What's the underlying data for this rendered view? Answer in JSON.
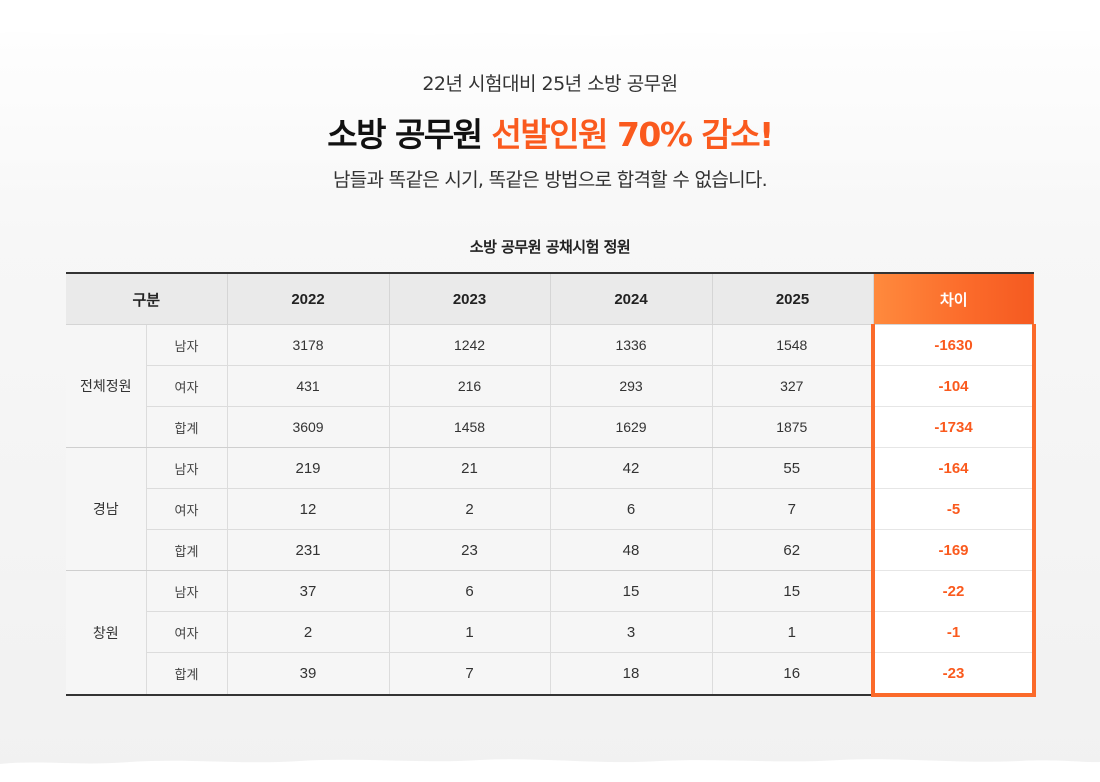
{
  "header": {
    "subtitle": "22년 시험대비 25년 소방 공무원",
    "headline_main": "소방 공무원 ",
    "headline_accent": "선발인원 70% 감소!",
    "tagline": "남들과 똑같은 시기, 똑같은 방법으로 합격할 수 없습니다."
  },
  "table": {
    "title": "소방 공무원 공채시험 정원",
    "headers": {
      "category": "구분",
      "years": [
        "2022",
        "2023",
        "2024",
        "2025"
      ],
      "diff": "차이"
    },
    "groups": [
      {
        "region": "전체정원",
        "rows": [
          {
            "label": "남자",
            "values": [
              "3178",
              "1242",
              "1336",
              "1548"
            ],
            "diff": "-1630"
          },
          {
            "label": "여자",
            "values": [
              "431",
              "216",
              "293",
              "327"
            ],
            "diff": "-104"
          },
          {
            "label": "합계",
            "values": [
              "3609",
              "1458",
              "1629",
              "1875"
            ],
            "diff": "-1734"
          }
        ]
      },
      {
        "region": "경남",
        "rows": [
          {
            "label": "남자",
            "values": [
              "219",
              "21",
              "42",
              "55"
            ],
            "diff": "-164"
          },
          {
            "label": "여자",
            "values": [
              "12",
              "2",
              "6",
              "7"
            ],
            "diff": "-5"
          },
          {
            "label": "합계",
            "values": [
              "231",
              "23",
              "48",
              "62"
            ],
            "diff": "-169"
          }
        ]
      },
      {
        "region": "창원",
        "rows": [
          {
            "label": "남자",
            "values": [
              "37",
              "6",
              "15",
              "15"
            ],
            "diff": "-22"
          },
          {
            "label": "여자",
            "values": [
              "2",
              "1",
              "3",
              "1"
            ],
            "diff": "-1"
          },
          {
            "label": "합계",
            "values": [
              "39",
              "7",
              "18",
              "16"
            ],
            "diff": "-23"
          }
        ]
      }
    ]
  },
  "colors": {
    "accent": "#fa5a1e",
    "accent_gradient_start": "#ff8a3d",
    "header_bg": "#eaeaea",
    "cell_bg": "#f6f6f6"
  }
}
